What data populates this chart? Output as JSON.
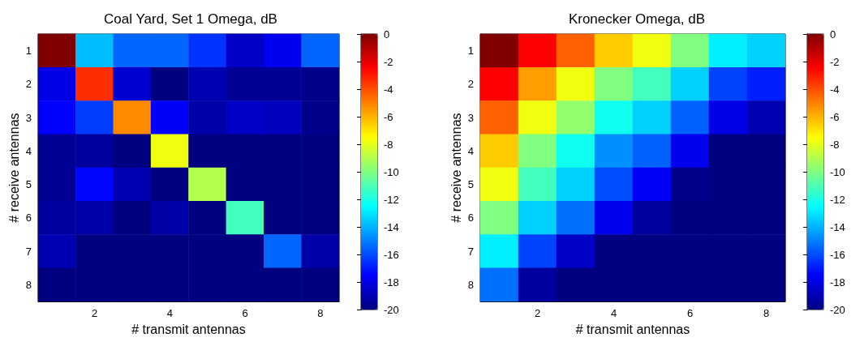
{
  "chart_data": [
    {
      "type": "heatmap",
      "title": "Coal Yard, Set 1 Omega, dB",
      "xlabel": "# transmit antennas",
      "ylabel": "# receive antennas",
      "categories": [
        null,
        "2",
        null,
        "4",
        null,
        "6",
        null,
        "8"
      ],
      "y_categories": [
        "1",
        "2",
        "3",
        "4",
        "5",
        "6",
        "7",
        "8"
      ],
      "cells": [
        [
          0,
          -13.8,
          -15.5,
          -15.5,
          -16.5,
          -18.6,
          -17.8,
          -15.5
        ],
        [
          -18,
          -3.4,
          -18.4,
          -20,
          -19,
          -19.6,
          -19.6,
          -19.8
        ],
        [
          -17.5,
          -16.3,
          -5.2,
          -17.6,
          -19.2,
          -18.6,
          -18.8,
          -19.8
        ],
        [
          -19.6,
          -19.4,
          -20,
          -7.8,
          -20,
          -20,
          -20,
          -20
        ],
        [
          -19.6,
          -17.4,
          -19,
          -20,
          -9,
          -20,
          -20,
          -20
        ],
        [
          -19.4,
          -19.2,
          -20,
          -19.2,
          -20,
          -11.2,
          -20,
          -20
        ],
        [
          -19,
          -20,
          -20,
          -20,
          -20,
          -20,
          -15.5,
          -19.2
        ],
        [
          -20,
          -20,
          -20,
          -20,
          -20,
          -20,
          -20,
          -20
        ]
      ],
      "clim": [
        -20,
        0
      ],
      "cticks": [
        -20,
        -18,
        -16,
        -14,
        -12,
        -10,
        -8,
        -6,
        -4,
        -2,
        0
      ]
    },
    {
      "type": "heatmap",
      "title": "Kronecker Omega, dB",
      "xlabel": "# transmit antennas",
      "ylabel": "# receive antennas",
      "categories": [
        null,
        "2",
        null,
        "4",
        null,
        "6",
        null,
        "8"
      ],
      "y_categories": [
        "1",
        "2",
        "3",
        "4",
        "5",
        "6",
        "7",
        "8"
      ],
      "cells": [
        [
          0,
          -2.5,
          -4.4,
          -6.5,
          -7.8,
          -10,
          -12.8,
          -13.4
        ],
        [
          -2.5,
          -5.6,
          -7.8,
          -10,
          -11.2,
          -13.4,
          -16.2,
          -16.9
        ],
        [
          -4.4,
          -7.8,
          -9.6,
          -12.2,
          -13.4,
          -15.6,
          -18,
          -19
        ],
        [
          -6.5,
          -10,
          -12.2,
          -14.7,
          -15.6,
          -17.8,
          -20,
          -20
        ],
        [
          -7.8,
          -11.2,
          -13.4,
          -16,
          -17.6,
          -19.8,
          -20,
          -20
        ],
        [
          -10,
          -13.4,
          -15.3,
          -17.8,
          -19.4,
          -20,
          -20,
          -20
        ],
        [
          -12.8,
          -16.2,
          -18.6,
          -20,
          -20,
          -20,
          -20,
          -20
        ],
        [
          -15.3,
          -19.4,
          -20,
          -20,
          -20,
          -20,
          -20,
          -20
        ]
      ],
      "clim": [
        -20,
        0
      ],
      "cticks": [
        -20,
        -18,
        -16,
        -14,
        -12,
        -10,
        -8,
        -6,
        -4,
        -2,
        0
      ]
    }
  ]
}
